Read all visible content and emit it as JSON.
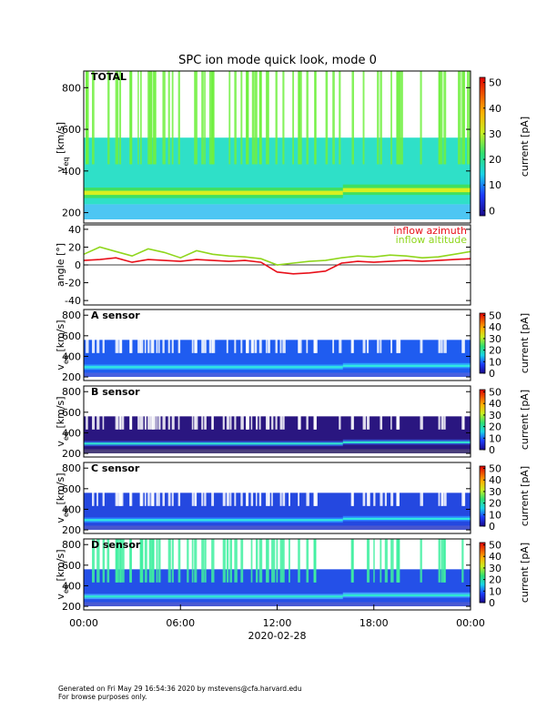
{
  "title": "SPC ion mode quick look, mode 0",
  "footer": [
    "Generated on Fri May 29 16:54:36 2020 by mstevens@cfa.harvard.edu",
    "For browse purposes only."
  ],
  "chart_data": [
    {
      "type": "heatmap",
      "label": "TOTAL",
      "ylabel": [
        "v",
        "eq",
        " [km/s]"
      ],
      "xlim": [
        0,
        24
      ],
      "ylim": [
        150,
        880
      ],
      "yticks": [
        200,
        400,
        600,
        800
      ],
      "colorbar": {
        "label": "current [pA]",
        "lim": [
          -2,
          52
        ],
        "ticks": [
          0,
          10,
          20,
          30,
          40,
          50
        ]
      }
    },
    {
      "type": "line",
      "ylabel": "angle [°]",
      "xlim": [
        0,
        24
      ],
      "ylim": [
        -45,
        45
      ],
      "yticks": [
        -40,
        -20,
        0,
        20,
        40
      ],
      "x": [
        0,
        1,
        2,
        3,
        4,
        5,
        6,
        7,
        8,
        9,
        10,
        11,
        12,
        13,
        14,
        15,
        16,
        17,
        18,
        19,
        20,
        21,
        22,
        23,
        24
      ],
      "series": [
        {
          "name": "inflow azimuth",
          "color": "#e8101a",
          "values": [
            5,
            6,
            8,
            3,
            6,
            5,
            4,
            6,
            5,
            4,
            5,
            3,
            -8,
            -10,
            -9,
            -7,
            2,
            4,
            3,
            4,
            5,
            4,
            5,
            6,
            7
          ]
        },
        {
          "name": "inflow altitude",
          "color": "#8fd61c",
          "values": [
            12,
            20,
            15,
            10,
            18,
            14,
            8,
            16,
            12,
            10,
            9,
            7,
            0,
            2,
            4,
            5,
            8,
            10,
            9,
            11,
            10,
            8,
            9,
            12,
            15
          ]
        }
      ]
    },
    {
      "type": "heatmap",
      "label": "A sensor",
      "ylabel": [
        "v",
        "eq",
        " [km/s]"
      ],
      "xlim": [
        0,
        24
      ],
      "ylim": [
        165,
        855
      ],
      "yticks": [
        200,
        400,
        600,
        800
      ],
      "colorbar": {
        "label": "current [pA]",
        "lim": [
          0,
          52
        ],
        "ticks": [
          0,
          10,
          20,
          30,
          40,
          50
        ]
      }
    },
    {
      "type": "heatmap",
      "label": "B sensor",
      "ylabel": [
        "v",
        "eq",
        " [km/s]"
      ],
      "xlim": [
        0,
        24
      ],
      "ylim": [
        165,
        855
      ],
      "yticks": [
        200,
        400,
        600,
        800
      ],
      "colorbar": {
        "label": "current [pA]",
        "lim": [
          0,
          52
        ],
        "ticks": [
          0,
          10,
          20,
          30,
          40,
          50
        ]
      }
    },
    {
      "type": "heatmap",
      "label": "C sensor",
      "ylabel": [
        "v",
        "eq",
        " [km/s]"
      ],
      "xlim": [
        0,
        24
      ],
      "ylim": [
        165,
        855
      ],
      "yticks": [
        200,
        400,
        600,
        800
      ],
      "colorbar": {
        "label": "current [pA]",
        "lim": [
          0,
          52
        ],
        "ticks": [
          0,
          10,
          20,
          30,
          40,
          50
        ]
      }
    },
    {
      "type": "heatmap",
      "label": "D sensor",
      "ylabel": [
        "v",
        "eq",
        " [km/s]"
      ],
      "xlim": [
        0,
        24
      ],
      "ylim": [
        165,
        855
      ],
      "yticks": [
        200,
        400,
        600,
        800
      ],
      "colorbar": {
        "label": "current [pA]",
        "lim": [
          0,
          52
        ],
        "ticks": [
          0,
          10,
          20,
          30,
          40,
          50
        ]
      },
      "xticks": [
        {
          "value": 0,
          "label": "00:00"
        },
        {
          "value": 6,
          "label": "06:00"
        },
        {
          "value": 12,
          "label": "12:00"
        },
        {
          "value": 18,
          "label": "18:00"
        },
        {
          "value": 24,
          "label": "00:00"
        }
      ],
      "xlabel": "2020-02-28"
    }
  ]
}
